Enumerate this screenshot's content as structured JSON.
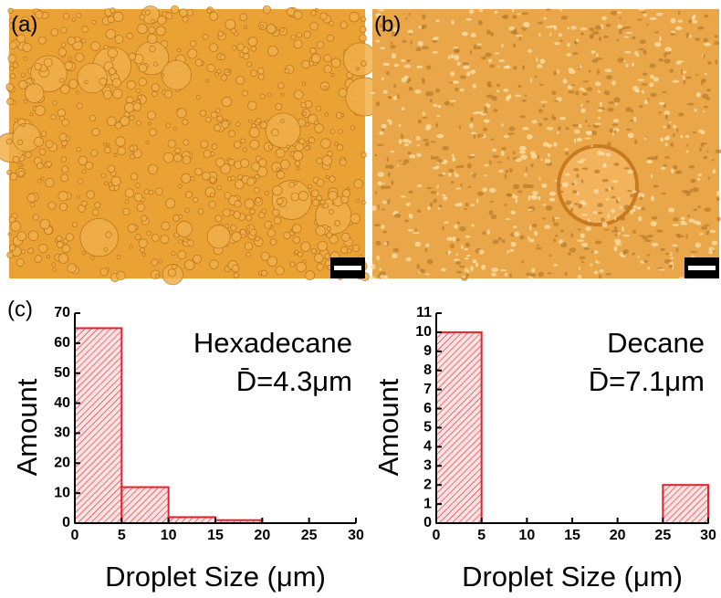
{
  "panel_labels": [
    "(a)",
    "(b)",
    "(c)"
  ],
  "chart_data": [
    {
      "type": "histogram",
      "annotation": "Hexadecane",
      "mean_label": "D̄=4.3μm",
      "xlabel": "Droplet Size (μm)",
      "ylabel": "Amount",
      "bins": [
        0,
        5,
        10,
        15,
        20,
        25,
        30
      ],
      "counts": [
        65,
        12,
        2,
        1,
        0,
        0
      ],
      "color": "#e8202a",
      "xlim": [
        0,
        30
      ],
      "xticks": [
        0,
        5,
        10,
        15,
        20,
        25,
        30
      ],
      "ylim": [
        0,
        70
      ],
      "yticks": [
        0,
        10,
        20,
        30,
        40,
        50,
        60,
        70
      ]
    },
    {
      "type": "histogram",
      "annotation": "Decane",
      "mean_label": "D̄=7.1μm",
      "xlabel": "Droplet Size (μm)",
      "ylabel": "Amount",
      "bins": [
        0,
        5,
        10,
        15,
        20,
        25,
        30
      ],
      "counts": [
        10,
        0,
        0,
        0,
        0,
        2
      ],
      "color": "#e8202a",
      "xlim": [
        0,
        30
      ],
      "xticks": [
        0,
        5,
        10,
        15,
        20,
        25,
        30
      ],
      "ylim": [
        0,
        11
      ],
      "yticks": [
        0,
        1,
        2,
        3,
        4,
        5,
        6,
        7,
        8,
        9,
        10,
        11
      ]
    }
  ]
}
